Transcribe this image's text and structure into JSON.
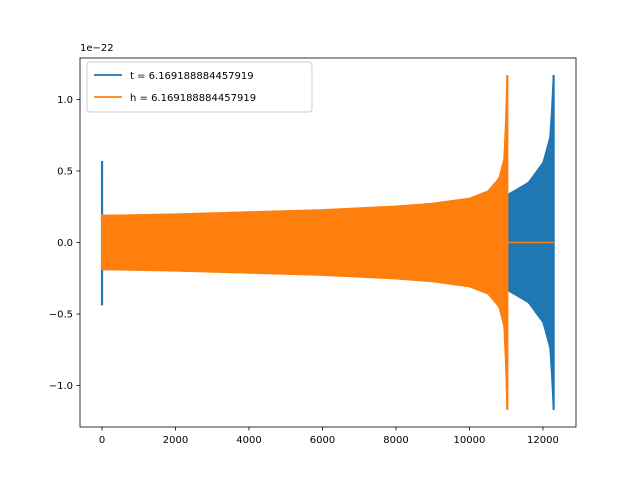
{
  "chart_data": {
    "type": "line",
    "title": "",
    "xlabel": "",
    "ylabel": "",
    "y_scale_label": "1e−22",
    "y_scale": 1e-22,
    "xlim": [
      -600,
      12900
    ],
    "ylim": [
      -1.29,
      1.29
    ],
    "x_ticks": [
      0,
      2000,
      4000,
      6000,
      8000,
      10000,
      12000
    ],
    "x_tick_labels": [
      "0",
      "2000",
      "4000",
      "6000",
      "8000",
      "10000",
      "12000"
    ],
    "y_ticks": [
      -1.0,
      -0.5,
      0.0,
      0.5,
      1.0
    ],
    "y_tick_labels": [
      "−1.0",
      "−0.5",
      "0.0",
      "0.5",
      "1.0"
    ],
    "grid": false,
    "legend_position": "top-left",
    "series": [
      {
        "name": "t = 6.169188884457919",
        "color": "#1f77b4",
        "description": "chirp signal: start spike then oscillation envelope growing to merger",
        "spike": {
          "x": 0,
          "ymin": -0.44,
          "ymax": 0.57
        },
        "envelope": {
          "x": [
            0,
            2000,
            4000,
            6000,
            8000,
            10000,
            11000,
            11600,
            12000,
            12200,
            12280
          ],
          "amplitude": [
            0.19,
            0.195,
            0.205,
            0.22,
            0.245,
            0.29,
            0.33,
            0.42,
            0.56,
            0.75,
            1.17
          ]
        },
        "peak": {
          "x": 12290,
          "ymin": -1.17,
          "ymax": 1.17
        },
        "end_x": 12300
      },
      {
        "name": "h = 6.169188884457919",
        "color": "#ff7f0e",
        "description": "chirp signal shifted earlier, zero after merger",
        "spike": {
          "x": 0,
          "ymin": -0.19,
          "ymax": 0.2
        },
        "envelope": {
          "x": [
            0,
            2000,
            4000,
            6000,
            8000,
            9000,
            10000,
            10500,
            10800,
            10950,
            11020
          ],
          "amplitude": [
            0.19,
            0.2,
            0.215,
            0.23,
            0.255,
            0.275,
            0.31,
            0.36,
            0.45,
            0.6,
            1.17
          ]
        },
        "peak": {
          "x": 11030,
          "ymin": -1.17,
          "ymax": 1.17
        },
        "tail": {
          "x_start": 11040,
          "x_end": 12300,
          "y": 0.0
        }
      }
    ]
  }
}
